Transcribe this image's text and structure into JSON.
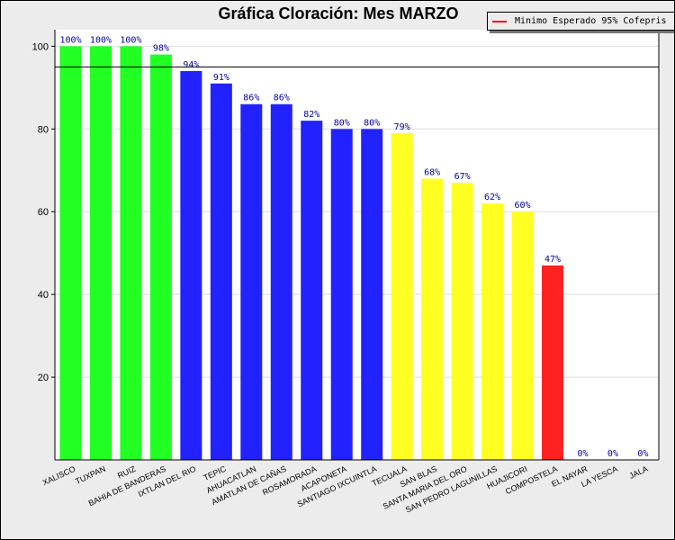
{
  "chart_data": {
    "type": "bar",
    "title": "Gráfica Cloración: Mes MARZO",
    "xlabel": "",
    "ylabel": "",
    "ylim": [
      0,
      104
    ],
    "yticks": [
      20,
      40,
      60,
      80,
      100
    ],
    "grid": true,
    "legend": {
      "placement": "top-right",
      "entries": [
        {
          "label": "Minimo Esperado 95% Cofepris",
          "color": "#ff0000"
        }
      ]
    },
    "reference_line": {
      "value": 95,
      "color": "#000000"
    },
    "categories": [
      "XALISCO",
      "TUXPAN",
      "RUIZ",
      "BAHIA DE BANDERAS",
      "IXTLAN DEL RIO",
      "TEPIC",
      "AHUACATLAN",
      "AMATLAN DE CAÑAS",
      "ROSAMORADA",
      "ACAPONETA",
      "SANTIAGO IXCUINTLA",
      "TECUALA",
      "SAN BLAS",
      "SANTA MARIA DEL ORO",
      "SAN PEDRO LAGUNILLAS",
      "HUAJICORI",
      "COMPOSTELA",
      "EL NAYAR",
      "LA YESCA",
      "JALA"
    ],
    "values": [
      100,
      100,
      100,
      98,
      94,
      91,
      86,
      86,
      82,
      80,
      80,
      79,
      68,
      67,
      62,
      60,
      47,
      0,
      0,
      0
    ],
    "labels": [
      "100%",
      "100%",
      "100%",
      "98%",
      "94%",
      "91%",
      "86%",
      "86%",
      "82%",
      "80%",
      "80%",
      "79%",
      "68%",
      "67%",
      "62%",
      "60%",
      "47%",
      "0%",
      "0%",
      "0%"
    ],
    "colors": [
      "#22ff22",
      "#22ff22",
      "#22ff22",
      "#22ff22",
      "#2222ff",
      "#2222ff",
      "#2222ff",
      "#2222ff",
      "#2222ff",
      "#2222ff",
      "#2222ff",
      "#ffff22",
      "#ffff22",
      "#ffff22",
      "#ffff22",
      "#ffff22",
      "#ff2222",
      "#22ff22",
      "#22ff22",
      "#22ff22"
    ],
    "label_color": "#0000aa"
  }
}
